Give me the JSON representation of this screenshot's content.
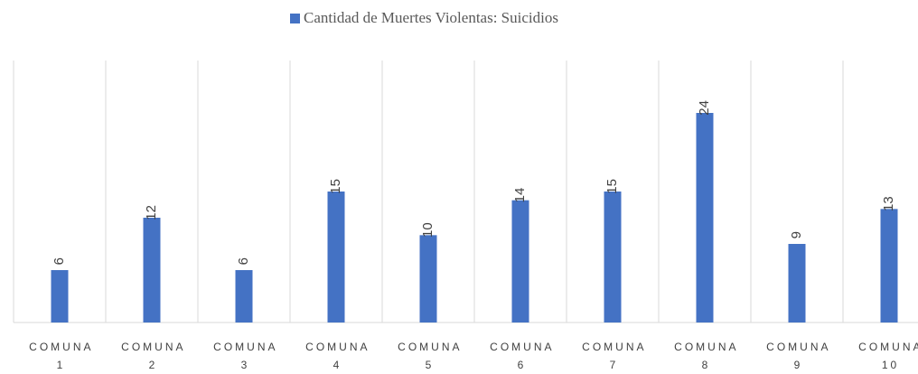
{
  "chart_data": {
    "type": "bar",
    "categories": [
      "COMUNA 1",
      "COMUNA 2",
      "COMUNA 3",
      "COMUNA 4",
      "COMUNA 5",
      "COMUNA 6",
      "COMUNA 7",
      "COMUNA 8",
      "COMUNA 9",
      "COMUNA 10"
    ],
    "series": [
      {
        "name": "Cantidad de Muertes Violentas: Suicidios",
        "color": "#4472c4",
        "values": [
          6,
          12,
          6,
          15,
          10,
          14,
          15,
          24,
          9,
          13
        ]
      }
    ],
    "ylim": [
      0,
      30
    ],
    "grid": true,
    "legend": "top"
  }
}
